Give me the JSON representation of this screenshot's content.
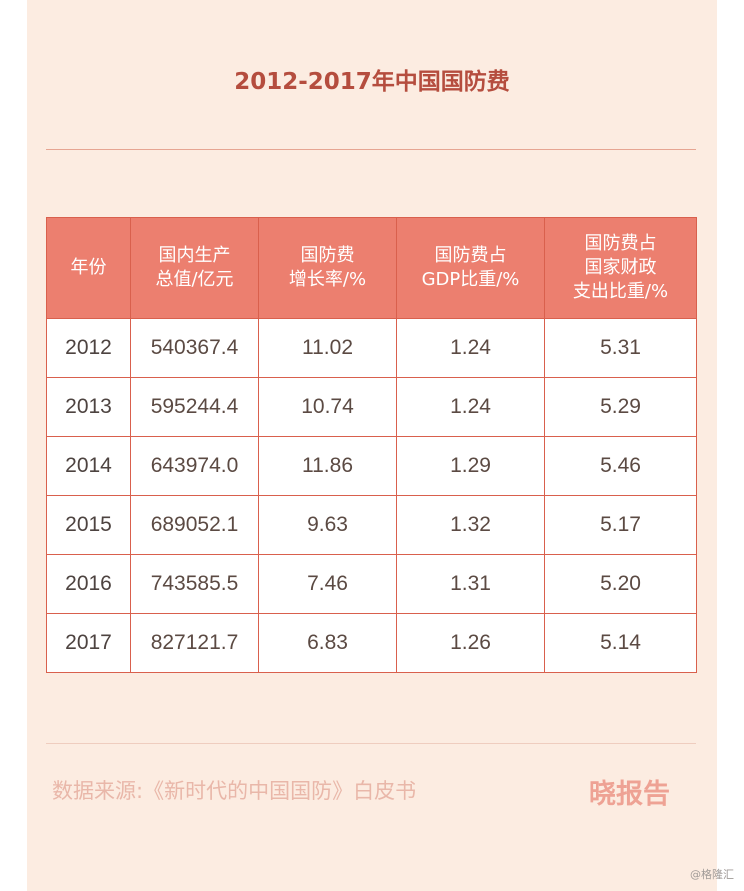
{
  "chart_data": {
    "type": "table",
    "title": "2012-2017年中国国防费",
    "columns": [
      "年份",
      "国内生产\n总值/亿元",
      "国防费\n增长率/%",
      "国防费占\nGDP比重/%",
      "国防费占\n国家财政\n支出比重/%"
    ],
    "rows": [
      [
        "2012",
        "540367.4",
        "11.02",
        "1.24",
        "5.31"
      ],
      [
        "2013",
        "595244.4",
        "10.74",
        "1.24",
        "5.29"
      ],
      [
        "2014",
        "643974.0",
        "11.86",
        "1.29",
        "5.46"
      ],
      [
        "2015",
        "689052.1",
        "9.63",
        "1.32",
        "5.17"
      ],
      [
        "2016",
        "743585.5",
        "7.46",
        "1.31",
        "5.20"
      ],
      [
        "2017",
        "827121.7",
        "6.83",
        "1.26",
        "5.14"
      ]
    ]
  },
  "source": "数据来源:《新时代的中国国防》白皮书",
  "brand": "晓报告",
  "watermark": "@格隆汇",
  "colors": {
    "background": "#fcece1",
    "header_fill": "#ec7f6f",
    "border": "#d9604d",
    "title": "#b54d3e"
  }
}
